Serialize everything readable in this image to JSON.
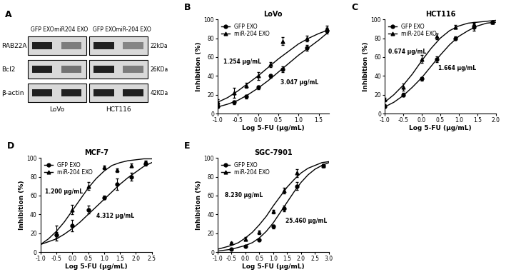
{
  "blot": {
    "panel": "A",
    "columns": [
      "GFP EXO",
      "miR204 EXO",
      "GFP EXO",
      "miR-204 EXO"
    ],
    "cell_lines": [
      "LoVo",
      "HCT116"
    ],
    "rows": [
      {
        "name": "RAB22A",
        "size": "22kDa",
        "intensity": [
          1.0,
          0.5,
          1.0,
          0.45
        ]
      },
      {
        "name": "Bcl2",
        "size": "26KDa",
        "intensity": [
          1.0,
          0.55,
          1.0,
          0.5
        ]
      },
      {
        "name": "β-actin",
        "size": "42KDa",
        "intensity": [
          1.0,
          1.0,
          1.0,
          1.0
        ]
      }
    ]
  },
  "chart_data": [
    {
      "type": "line",
      "panel": "B",
      "title": "LoVo",
      "xlabel": "Log 5-FU (μg/mL)",
      "ylabel": "Inhibition (%)",
      "xlim": [
        -1.0,
        1.75
      ],
      "xticks": [
        -1.0,
        -0.5,
        0.0,
        0.5,
        1.0,
        1.5
      ],
      "ylim": [
        0,
        100
      ],
      "yticks": [
        0,
        20,
        40,
        60,
        80,
        100
      ],
      "legend": "upper left",
      "annotations": [
        {
          "text": "1.254 μg/mL",
          "x": -0.85,
          "y": 55
        },
        {
          "text": "3.047 μg/mL",
          "x": 0.55,
          "y": 33
        }
      ],
      "series": [
        {
          "name": "GFP EXO",
          "color": "#000000",
          "marker": "circle",
          "x": [
            -1.0,
            -0.6,
            -0.3,
            0.0,
            0.3,
            0.6,
            1.2,
            1.7
          ],
          "values": [
            8,
            12,
            18,
            28,
            40,
            47,
            70,
            88
          ],
          "error": [
            2,
            2,
            2,
            2,
            2,
            3,
            3,
            3
          ],
          "curve_x": [
            -1.0,
            -0.75,
            -0.5,
            -0.25,
            0.0,
            0.25,
            0.5,
            0.75,
            1.0,
            1.25,
            1.5,
            1.75
          ],
          "curve_values": [
            7,
            10,
            14,
            20,
            27,
            35,
            44,
            53,
            62,
            70,
            78,
            87
          ]
        },
        {
          "name": "miR-204 EXO",
          "color": "#000000",
          "marker": "triangle",
          "x": [
            -1.0,
            -0.6,
            -0.3,
            0.0,
            0.3,
            0.6,
            1.2,
            1.7
          ],
          "values": [
            12,
            22,
            30,
            40,
            52,
            77,
            80,
            90
          ],
          "error": [
            3,
            5,
            3,
            4,
            3,
            4,
            3,
            3
          ],
          "curve_x": [
            -1.0,
            -0.75,
            -0.5,
            -0.25,
            0.0,
            0.25,
            0.5,
            0.75,
            1.0,
            1.25,
            1.5,
            1.75
          ],
          "curve_values": [
            12,
            17,
            24,
            32,
            40,
            49,
            58,
            66,
            74,
            80,
            85,
            89
          ]
        }
      ]
    },
    {
      "type": "line",
      "panel": "C",
      "title": "HCT116",
      "xlabel": "Log 5-FU (μg/mL)",
      "ylabel": "Inhibition (%)",
      "xlim": [
        -1.0,
        2.0
      ],
      "xticks": [
        -1.0,
        -0.5,
        0.0,
        0.5,
        1.0,
        1.5,
        2.0
      ],
      "ylim": [
        0,
        100
      ],
      "yticks": [
        0,
        20,
        40,
        60,
        80,
        100
      ],
      "legend": "upper left",
      "annotations": [
        {
          "text": "0.674 μg/mL",
          "x": -0.9,
          "y": 66
        },
        {
          "text": "1.664 μg/mL",
          "x": 0.45,
          "y": 48
        }
      ],
      "series": [
        {
          "name": "GFP EXO",
          "color": "#000000",
          "marker": "circle",
          "x": [
            -1.0,
            -0.5,
            0.0,
            0.4,
            0.9,
            1.4,
            1.9
          ],
          "values": [
            8,
            20,
            37,
            58,
            80,
            92,
            97
          ],
          "error": [
            2,
            2,
            2,
            3,
            2,
            4,
            1
          ],
          "curve_x": [
            -1.0,
            -0.75,
            -0.5,
            -0.25,
            0.0,
            0.25,
            0.5,
            0.75,
            1.0,
            1.25,
            1.5,
            1.75,
            2.0
          ],
          "curve_values": [
            7,
            12,
            19,
            28,
            38,
            50,
            62,
            73,
            82,
            88,
            93,
            96,
            97
          ]
        },
        {
          "name": "miR-204 EXO",
          "color": "#000000",
          "marker": "triangle",
          "x": [
            -1.0,
            -0.5,
            0.0,
            0.4,
            0.9,
            1.4,
            1.9
          ],
          "values": [
            15,
            28,
            58,
            82,
            92,
            95,
            97
          ],
          "error": [
            2,
            4,
            4,
            3,
            2,
            2,
            1
          ],
          "curve_x": [
            -1.0,
            -0.75,
            -0.5,
            -0.25,
            0.0,
            0.25,
            0.5,
            0.75,
            1.0,
            1.25,
            1.5,
            1.75,
            2.0
          ],
          "curve_values": [
            12,
            20,
            30,
            42,
            56,
            69,
            80,
            88,
            93,
            96,
            97,
            98,
            99
          ]
        }
      ]
    },
    {
      "type": "line",
      "panel": "D",
      "title": "MCF-7",
      "xlabel": "Log 5-FU (μg/mL)",
      "ylabel": "Inhibition (%)",
      "xlim": [
        -1.0,
        2.5
      ],
      "xticks": [
        -1.0,
        -0.5,
        0.0,
        0.5,
        1.0,
        1.5,
        2.0,
        2.5
      ],
      "ylim": [
        0,
        100
      ],
      "yticks": [
        0,
        20,
        40,
        60,
        80,
        100
      ],
      "legend": "upper left",
      "annotations": [
        {
          "text": "1.200 μg/mL",
          "x": -0.85,
          "y": 64
        },
        {
          "text": "4.312 μg/mL",
          "x": 0.75,
          "y": 38
        }
      ],
      "series": [
        {
          "name": "GFP EXO",
          "color": "#000000",
          "marker": "circle",
          "x": [
            -0.5,
            0.0,
            0.5,
            1.0,
            1.4,
            1.85,
            2.3
          ],
          "values": [
            18,
            28,
            45,
            58,
            72,
            80,
            94
          ],
          "error": [
            3,
            6,
            4,
            2,
            6,
            4,
            2
          ],
          "curve_x": [
            -1.0,
            -0.75,
            -0.5,
            -0.25,
            0.0,
            0.25,
            0.5,
            0.75,
            1.0,
            1.25,
            1.5,
            1.75,
            2.0,
            2.25,
            2.5
          ],
          "curve_values": [
            8,
            11,
            14,
            19,
            25,
            32,
            40,
            48,
            56,
            64,
            72,
            79,
            85,
            91,
            95
          ]
        },
        {
          "name": "miR-204 EXO",
          "color": "#000000",
          "marker": "triangle",
          "x": [
            -0.5,
            0.0,
            0.5,
            1.0,
            1.4,
            1.85,
            2.3
          ],
          "values": [
            20,
            45,
            70,
            90,
            87,
            92,
            95
          ],
          "error": [
            8,
            5,
            4,
            2,
            2,
            2,
            2
          ],
          "curve_x": [
            -1.0,
            -0.75,
            -0.5,
            -0.25,
            0.0,
            0.25,
            0.5,
            0.75,
            1.0,
            1.25,
            1.5,
            1.75,
            2.0,
            2.25,
            2.5
          ],
          "curve_values": [
            8,
            14,
            22,
            32,
            44,
            56,
            68,
            78,
            86,
            92,
            95,
            97,
            98,
            99,
            99
          ]
        }
      ]
    },
    {
      "type": "line",
      "panel": "E",
      "title": "SGC-7901",
      "xlabel": "Log 5-FU (μg/mL)",
      "ylabel": "Inhibition (%)",
      "xlim": [
        -1.0,
        3.0
      ],
      "xticks": [
        -1.0,
        -0.5,
        0.0,
        0.5,
        1.0,
        1.5,
        2.0,
        2.5,
        3.0
      ],
      "ylim": [
        0,
        100
      ],
      "yticks": [
        0,
        20,
        40,
        60,
        80,
        100
      ],
      "legend": "upper left",
      "annotations": [
        {
          "text": "8.230 μg/mL",
          "x": -0.75,
          "y": 60
        },
        {
          "text": "25.460 μg/mL",
          "x": 1.45,
          "y": 33
        }
      ],
      "series": [
        {
          "name": "GFP EXO",
          "color": "#000000",
          "marker": "circle",
          "x": [
            -0.5,
            0.0,
            0.5,
            1.0,
            1.4,
            1.85,
            2.8
          ],
          "values": [
            3,
            6,
            13,
            27,
            46,
            70,
            92
          ],
          "error": [
            1,
            1,
            1,
            2,
            3,
            4,
            1
          ],
          "curve_x": [
            -1.0,
            -0.75,
            -0.5,
            -0.25,
            0.0,
            0.25,
            0.5,
            0.75,
            1.0,
            1.25,
            1.5,
            1.75,
            2.0,
            2.25,
            2.5,
            2.75,
            3.0
          ],
          "curve_values": [
            1,
            2,
            3,
            5,
            7,
            10,
            15,
            22,
            31,
            42,
            53,
            64,
            74,
            82,
            88,
            92,
            95
          ]
        },
        {
          "name": "miR-204 EXO",
          "color": "#000000",
          "marker": "triangle",
          "x": [
            -0.5,
            0.0,
            0.5,
            1.0,
            1.4,
            1.85,
            2.8
          ],
          "values": [
            10,
            14,
            21,
            43,
            65,
            84,
            92
          ],
          "error": [
            1,
            2,
            2,
            2,
            3,
            4,
            1
          ],
          "curve_x": [
            -1.0,
            -0.75,
            -0.5,
            -0.25,
            0.0,
            0.25,
            0.5,
            0.75,
            1.0,
            1.25,
            1.5,
            1.75,
            2.0,
            2.25,
            2.5,
            2.75,
            3.0
          ],
          "curve_values": [
            3,
            5,
            7,
            10,
            15,
            21,
            29,
            38,
            49,
            59,
            69,
            77,
            84,
            89,
            92,
            95,
            96
          ]
        }
      ]
    }
  ]
}
